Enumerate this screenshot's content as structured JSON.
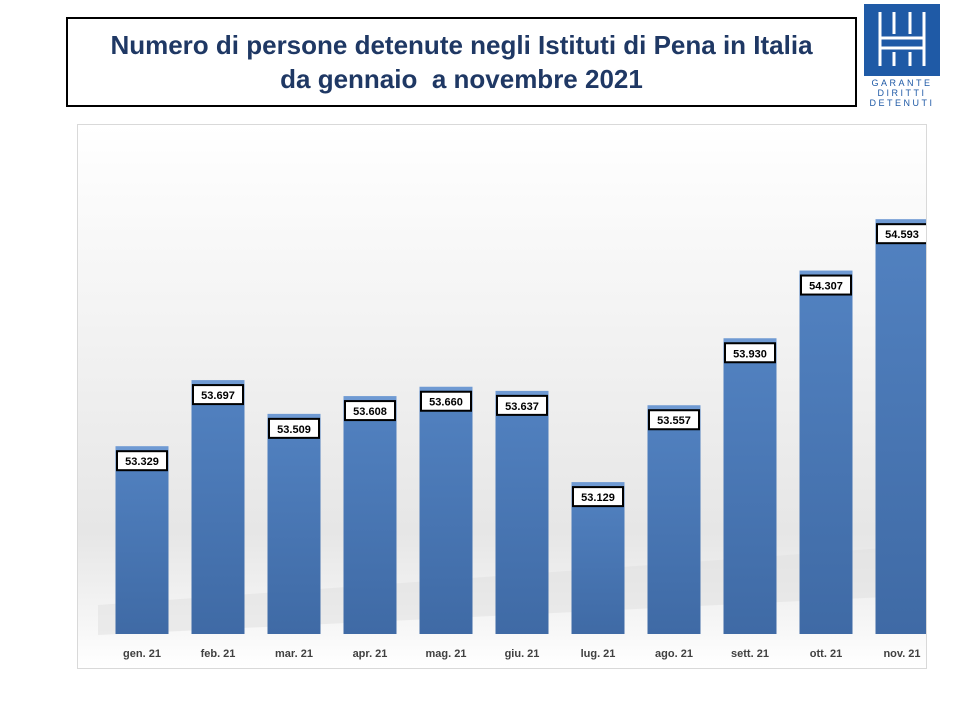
{
  "title": {
    "line1": "Numero di persone detenute negli Istituti di Pena in Italia",
    "line2": "da gennaio  a novembre 2021"
  },
  "logo": {
    "lines": [
      "GARANTE",
      "DIRITTI",
      "DETENUTI"
    ],
    "color": "#1f5aa6"
  },
  "colors": {
    "title_text": "#1f3864",
    "bar": "#4a7ab8",
    "bar_top": "#6f9ad3",
    "label_box_border": "#000000"
  },
  "chart_data": {
    "type": "bar",
    "categories": [
      "gen. 21",
      "feb. 21",
      "mar. 21",
      "apr. 21",
      "mag. 21",
      "giu. 21",
      "lug. 21",
      "ago. 21",
      "sett. 21",
      "ott. 21",
      "nov. 21"
    ],
    "values": [
      53329,
      53697,
      53509,
      53608,
      53660,
      53637,
      53129,
      53557,
      53930,
      54307,
      54593
    ],
    "value_labels": [
      "53.329",
      "53.697",
      "53.509",
      "53.608",
      "53.660",
      "53.637",
      "53.129",
      "53.557",
      "53.930",
      "54.307",
      "54.593"
    ],
    "ylim": [
      52300,
      54800
    ],
    "grid": false,
    "y_axis_visible": false
  }
}
